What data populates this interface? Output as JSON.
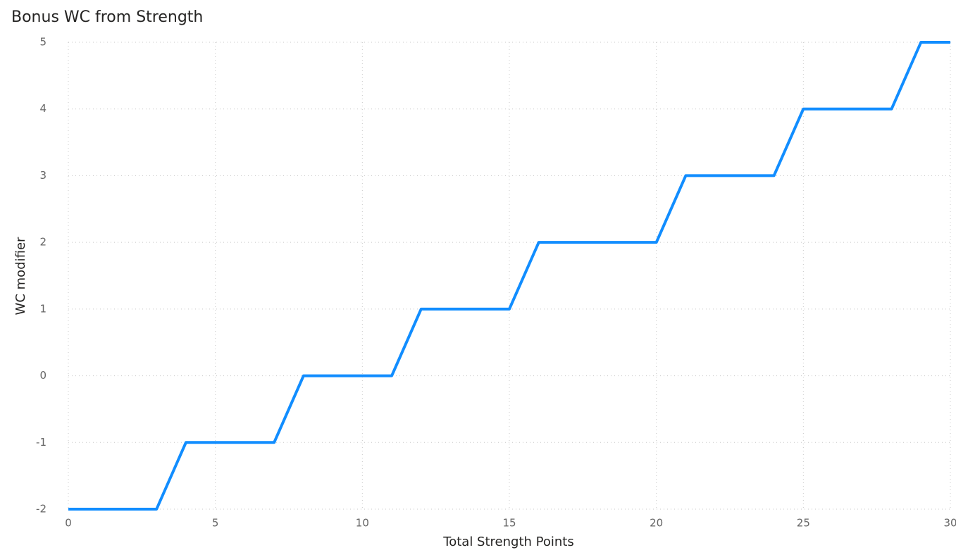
{
  "chart_data": {
    "type": "line",
    "title": "Bonus WC from Strength",
    "x_label": "Total Strength Points",
    "y_label": "WC modifier",
    "x": [
      0,
      1,
      2,
      3,
      4,
      5,
      6,
      7,
      8,
      9,
      10,
      11,
      12,
      13,
      14,
      15,
      16,
      17,
      18,
      19,
      20,
      21,
      22,
      23,
      24,
      25,
      26,
      27,
      28,
      29,
      30
    ],
    "values": [
      -2,
      -2,
      -2,
      -2,
      -1,
      -1,
      -1,
      -1,
      0,
      0,
      0,
      0,
      1,
      1,
      1,
      1,
      2,
      2,
      2,
      2,
      2,
      3,
      3,
      3,
      3,
      4,
      4,
      4,
      4,
      5,
      5
    ],
    "color": "#118DFF",
    "xlim": [
      0,
      30
    ],
    "xticks": [
      0,
      5,
      10,
      15,
      20,
      25,
      30
    ],
    "ylim": [
      -2,
      5
    ],
    "yticks": [
      -2,
      -1,
      0,
      1,
      2,
      3,
      4,
      5
    ],
    "grid": true
  }
}
